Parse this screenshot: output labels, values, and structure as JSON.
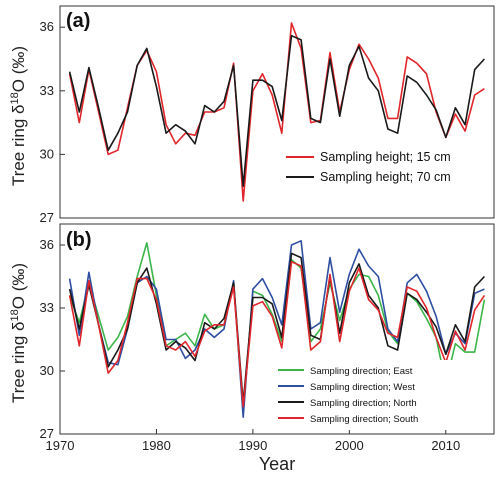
{
  "chart_data": [
    {
      "type": "line",
      "panel_label": "(a)",
      "ylabel_text": "Tree ring δ",
      "ylabel_sup": "18",
      "ylabel_tail": "O (‰)",
      "ylim": [
        27,
        37
      ],
      "yticks": [
        27,
        30,
        33,
        36
      ],
      "xlim": [
        1970,
        2015
      ],
      "legend_position": "lower-right",
      "series": [
        {
          "name": "Sampling height; 15 cm",
          "color": "#e0262b",
          "x": [
            1971,
            1972,
            1973,
            1974,
            1975,
            1976,
            1977,
            1978,
            1979,
            1980,
            1981,
            1982,
            1983,
            1984,
            1985,
            1986,
            1987,
            1988,
            1989,
            1990,
            1991,
            1992,
            1993,
            1994,
            1995,
            1996,
            1997,
            1998,
            1999,
            2000,
            2001,
            2002,
            2003,
            2004,
            2005,
            2006,
            2007,
            2008,
            2009,
            2010,
            2011,
            2012,
            2013,
            2014
          ],
          "values": [
            33.8,
            31.5,
            34.0,
            32.0,
            30.0,
            30.2,
            32.2,
            34.2,
            34.9,
            33.9,
            31.4,
            30.5,
            31.0,
            30.9,
            32.0,
            32.0,
            32.2,
            34.3,
            27.8,
            33.0,
            33.8,
            32.8,
            31.0,
            36.2,
            35.0,
            31.5,
            31.6,
            34.8,
            32.0,
            34.0,
            35.2,
            34.5,
            33.6,
            31.7,
            31.7,
            34.6,
            34.3,
            33.8,
            32.0,
            30.8,
            31.9,
            31.1,
            32.8,
            33.1
          ]
        },
        {
          "name": "Sampling height; 70 cm",
          "color": "#1a1a1a",
          "x": [
            1971,
            1972,
            1973,
            1974,
            1975,
            1976,
            1977,
            1978,
            1979,
            1980,
            1981,
            1982,
            1983,
            1984,
            1985,
            1986,
            1987,
            1988,
            1989,
            1990,
            1991,
            1992,
            1993,
            1994,
            1995,
            1996,
            1997,
            1998,
            1999,
            2000,
            2001,
            2002,
            2003,
            2004,
            2005,
            2006,
            2007,
            2008,
            2009,
            2010,
            2011,
            2012,
            2013,
            2014
          ],
          "values": [
            33.9,
            32.0,
            34.1,
            32.2,
            30.2,
            31.0,
            32.0,
            34.2,
            35.0,
            33.2,
            31.0,
            31.4,
            31.1,
            30.5,
            32.3,
            32.0,
            32.5,
            34.2,
            28.5,
            33.5,
            33.5,
            33.2,
            31.6,
            35.6,
            35.4,
            31.7,
            31.5,
            34.5,
            31.8,
            34.2,
            35.1,
            33.6,
            33.0,
            31.2,
            31.0,
            33.7,
            33.4,
            32.8,
            32.1,
            30.8,
            32.2,
            31.4,
            34.0,
            34.5
          ]
        }
      ]
    },
    {
      "type": "line",
      "panel_label": "(b)",
      "ylabel_text": "Tree ring δ",
      "ylabel_sup": "18",
      "ylabel_tail": "O (‰)",
      "xlabel": "Year",
      "ylim": [
        27,
        37
      ],
      "yticks": [
        27,
        30,
        33,
        36
      ],
      "xlim": [
        1970,
        2015
      ],
      "xticks": [
        1970,
        1980,
        1990,
        2000,
        2010
      ],
      "legend_position": "lower-right",
      "series": [
        {
          "name": "Sampling direction; East",
          "color": "#3bb54a",
          "x": [
            1971,
            1972,
            1973,
            1974,
            1975,
            1976,
            1977,
            1978,
            1979,
            1980,
            1981,
            1982,
            1983,
            1984,
            1985,
            1986,
            1987,
            1988,
            1989,
            1990,
            1991,
            1992,
            1993,
            1994,
            1995,
            1996,
            1997,
            1998,
            1999,
            2000,
            2001,
            2002,
            2003,
            2004,
            2005,
            2006,
            2007,
            2008,
            2009,
            2010,
            2011,
            2012,
            2013,
            2014
          ],
          "values": [
            33.6,
            32.3,
            34.2,
            32.6,
            31.0,
            31.6,
            32.6,
            34.5,
            36.1,
            33.6,
            31.2,
            31.5,
            31.8,
            31.2,
            32.7,
            32.0,
            32.2,
            34.2,
            28.0,
            33.8,
            33.6,
            32.7,
            31.4,
            35.3,
            34.9,
            31.4,
            32.0,
            34.2,
            32.4,
            33.9,
            34.6,
            34.5,
            33.6,
            31.9,
            31.3,
            33.7,
            33.3,
            32.5,
            31.6,
            29.4,
            31.3,
            30.9,
            30.9,
            33.4
          ]
        },
        {
          "name": "Sampling direction; West",
          "color": "#2e4ea2",
          "x": [
            1971,
            1972,
            1973,
            1974,
            1975,
            1976,
            1977,
            1978,
            1979,
            1980,
            1981,
            1982,
            1983,
            1984,
            1985,
            1986,
            1987,
            1988,
            1989,
            1990,
            1991,
            1992,
            1993,
            1994,
            1995,
            1996,
            1997,
            1998,
            1999,
            2000,
            2001,
            2002,
            2003,
            2004,
            2005,
            2006,
            2007,
            2008,
            2009,
            2010,
            2011,
            2012,
            2013,
            2014
          ],
          "values": [
            34.4,
            31.7,
            34.7,
            32.2,
            30.4,
            30.3,
            32.0,
            34.2,
            34.5,
            33.9,
            31.5,
            31.5,
            30.6,
            31.0,
            32.0,
            31.6,
            32.0,
            34.3,
            27.8,
            33.9,
            34.4,
            33.5,
            32.2,
            36.0,
            36.2,
            32.0,
            32.3,
            35.4,
            32.8,
            34.6,
            35.8,
            35.0,
            34.5,
            32.0,
            31.4,
            34.2,
            34.6,
            33.8,
            32.6,
            30.8,
            31.8,
            31.3,
            33.7,
            33.9
          ]
        },
        {
          "name": "Sampling direction; North",
          "color": "#1a1a1a",
          "x": [
            1971,
            1972,
            1973,
            1974,
            1975,
            1976,
            1977,
            1978,
            1979,
            1980,
            1981,
            1982,
            1983,
            1984,
            1985,
            1986,
            1987,
            1988,
            1989,
            1990,
            1991,
            1992,
            1993,
            1994,
            1995,
            1996,
            1997,
            1998,
            1999,
            2000,
            2001,
            2002,
            2003,
            2004,
            2005,
            2006,
            2007,
            2008,
            2009,
            2010,
            2011,
            2012,
            2013,
            2014
          ],
          "values": [
            33.9,
            32.0,
            34.1,
            32.2,
            30.2,
            31.0,
            32.0,
            34.2,
            34.9,
            33.2,
            31.0,
            31.4,
            31.1,
            30.5,
            32.3,
            32.0,
            32.5,
            34.2,
            28.5,
            33.5,
            33.5,
            33.2,
            31.6,
            35.6,
            35.4,
            31.7,
            31.5,
            34.5,
            31.8,
            34.2,
            35.1,
            33.6,
            33.0,
            31.2,
            31.0,
            33.7,
            33.4,
            32.8,
            32.1,
            30.8,
            32.2,
            31.4,
            34.0,
            34.5
          ]
        },
        {
          "name": "Sampling direction; South",
          "color": "#e0262b",
          "x": [
            1971,
            1972,
            1973,
            1974,
            1975,
            1976,
            1977,
            1978,
            1979,
            1980,
            1981,
            1982,
            1983,
            1984,
            1985,
            1986,
            1987,
            1988,
            1989,
            1990,
            1991,
            1992,
            1993,
            1994,
            1995,
            1996,
            1997,
            1998,
            1999,
            2000,
            2001,
            2002,
            2003,
            2004,
            2005,
            2006,
            2007,
            2008,
            2009,
            2010,
            2011,
            2012,
            2013,
            2014
          ],
          "values": [
            33.6,
            31.2,
            34.3,
            32.2,
            29.9,
            30.5,
            32.3,
            34.4,
            34.4,
            33.4,
            31.2,
            31.0,
            31.4,
            30.7,
            31.9,
            32.2,
            32.2,
            34.0,
            28.3,
            33.1,
            33.3,
            32.6,
            31.1,
            35.2,
            35.0,
            31.0,
            31.4,
            34.6,
            31.4,
            33.8,
            34.9,
            33.4,
            32.9,
            31.8,
            31.6,
            34.0,
            33.8,
            33.0,
            31.6,
            30.4,
            31.9,
            31.0,
            32.9,
            33.6
          ]
        }
      ]
    }
  ]
}
